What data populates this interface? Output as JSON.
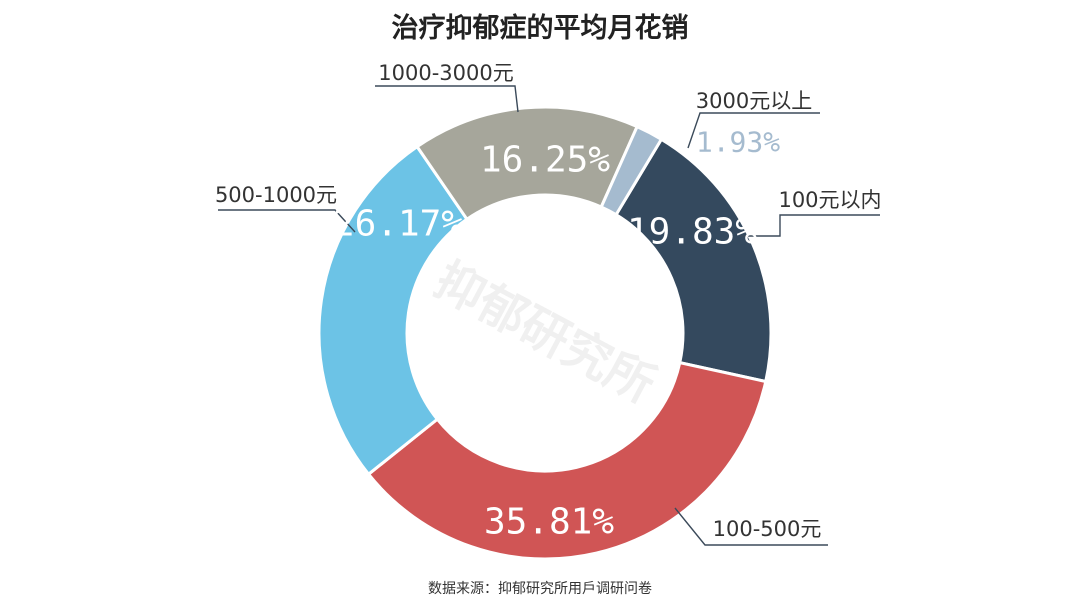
{
  "title": "治疗抑郁症的平均月花销",
  "source": "数据来源：抑郁研究所用戶调研问卷",
  "watermark": "抑郁研究所",
  "chart_data": {
    "type": "donut",
    "title": "治疗抑郁症的平均月花销",
    "legend": "callout labels beside slices",
    "slices": [
      {
        "label": "100元以内",
        "value": 19.83,
        "value_label": "19.83%",
        "color": "#34495e"
      },
      {
        "label": "100-500元",
        "value": 35.81,
        "value_label": "35.81%",
        "color": "#d05555"
      },
      {
        "label": "500-1000元",
        "value": 26.17,
        "value_label": "26.17%",
        "color": "#6cc3e6"
      },
      {
        "label": "1000-3000元",
        "value": 16.25,
        "value_label": "16.25%",
        "color": "#a6a69b"
      },
      {
        "label": "3000元以上",
        "value": 1.93,
        "value_label": "1.93%",
        "color": "#a5bbcf"
      }
    ],
    "value_label_colors": [
      "#ffffff",
      "#ffffff",
      "#ffffff",
      "#ffffff",
      "#a5bbcf"
    ]
  }
}
